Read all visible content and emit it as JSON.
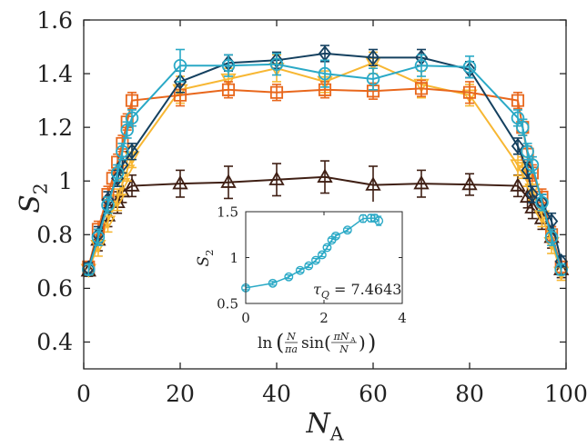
{
  "chart_data": [
    {
      "type": "line",
      "xlabel": "N_A",
      "ylabel": "S_2",
      "xlim": [
        0,
        100
      ],
      "ylim": [
        0.3,
        1.6
      ],
      "xticks": [
        "0",
        "20",
        "40",
        "60",
        "80",
        "100"
      ],
      "yticks": [
        "0.4",
        "0.6",
        "0.8",
        "1",
        "1.2",
        "1.4",
        "1.6"
      ],
      "grid": false,
      "series": [
        {
          "color": "#3f1f14",
          "marker": "triangle-up",
          "x": [
            1,
            3,
            5,
            7,
            8,
            10,
            20,
            30,
            40,
            50,
            60,
            70,
            80,
            90,
            92,
            93,
            95,
            97,
            99
          ],
          "y": [
            0.665,
            0.78,
            0.87,
            0.92,
            0.96,
            0.982,
            0.99,
            0.995,
            1.005,
            1.015,
            0.985,
            0.99,
            0.987,
            0.982,
            0.94,
            0.9,
            0.86,
            0.79,
            0.67
          ],
          "err": [
            0.02,
            0.04,
            0.04,
            0.04,
            0.04,
            0.04,
            0.05,
            0.06,
            0.06,
            0.06,
            0.07,
            0.05,
            0.04,
            0.04,
            0.04,
            0.04,
            0.04,
            0.04,
            0.03
          ]
        },
        {
          "color": "#f7b733",
          "marker": "triangle-down",
          "x": [
            1,
            3,
            5,
            7,
            8,
            9,
            10,
            20,
            30,
            40,
            50,
            60,
            70,
            80,
            90,
            91,
            92,
            93,
            95,
            97,
            99
          ],
          "y": [
            0.67,
            0.76,
            0.85,
            0.93,
            0.99,
            1.04,
            1.09,
            1.34,
            1.38,
            1.42,
            1.37,
            1.44,
            1.36,
            1.32,
            1.06,
            1.05,
            1.02,
            0.97,
            0.87,
            0.77,
            0.66
          ],
          "err": [
            0.02,
            0.04,
            0.04,
            0.04,
            0.04,
            0.04,
            0.04,
            0.05,
            0.04,
            0.05,
            0.04,
            0.04,
            0.05,
            0.04,
            0.04,
            0.04,
            0.04,
            0.04,
            0.04,
            0.04,
            0.03
          ]
        },
        {
          "color": "#e8671c",
          "marker": "square",
          "x": [
            1,
            3,
            5,
            6,
            7,
            8,
            9,
            10,
            20,
            30,
            40,
            50,
            60,
            70,
            80,
            90,
            91,
            92,
            93,
            95,
            97,
            99
          ],
          "y": [
            0.68,
            0.82,
            0.95,
            1.01,
            1.07,
            1.14,
            1.22,
            1.3,
            1.32,
            1.34,
            1.33,
            1.34,
            1.335,
            1.345,
            1.33,
            1.3,
            1.2,
            1.1,
            1.03,
            0.94,
            0.8,
            0.68
          ],
          "err": [
            0.02,
            0.03,
            0.03,
            0.03,
            0.03,
            0.03,
            0.03,
            0.03,
            0.04,
            0.03,
            0.03,
            0.03,
            0.03,
            0.03,
            0.04,
            0.03,
            0.03,
            0.03,
            0.03,
            0.03,
            0.03,
            0.02
          ]
        },
        {
          "color": "#14405f",
          "marker": "diamond",
          "x": [
            1,
            3,
            5,
            7,
            8,
            10,
            20,
            30,
            40,
            50,
            60,
            70,
            80,
            90,
            92,
            93,
            95,
            97,
            99
          ],
          "y": [
            0.675,
            0.8,
            0.93,
            1.01,
            1.06,
            1.11,
            1.37,
            1.44,
            1.45,
            1.475,
            1.46,
            1.46,
            1.415,
            1.13,
            1.04,
            0.95,
            0.92,
            0.85,
            0.7
          ],
          "err": [
            0.02,
            0.03,
            0.03,
            0.03,
            0.03,
            0.03,
            0.04,
            0.03,
            0.03,
            0.03,
            0.03,
            0.03,
            0.03,
            0.03,
            0.03,
            0.03,
            0.03,
            0.03,
            0.02
          ]
        },
        {
          "color": "#2aa9c6",
          "marker": "circle",
          "x": [
            1,
            3,
            5,
            7,
            8,
            9,
            10,
            20,
            30,
            40,
            50,
            60,
            70,
            80,
            90,
            91,
            92,
            93,
            95,
            97,
            99
          ],
          "y": [
            0.67,
            0.79,
            0.91,
            1.03,
            1.11,
            1.19,
            1.235,
            1.43,
            1.43,
            1.435,
            1.4,
            1.38,
            1.43,
            1.425,
            1.235,
            1.2,
            1.11,
            1.06,
            0.92,
            0.79,
            0.67
          ],
          "err": [
            0.02,
            0.03,
            0.03,
            0.03,
            0.03,
            0.03,
            0.03,
            0.06,
            0.04,
            0.04,
            0.05,
            0.04,
            0.04,
            0.04,
            0.03,
            0.03,
            0.03,
            0.03,
            0.03,
            0.03,
            0.02
          ]
        }
      ]
    },
    {
      "type": "line",
      "xlabel": "ln(N/(πa) sin(πN_A/N))",
      "ylabel": "S_2",
      "xlim": [
        0,
        4
      ],
      "ylim": [
        0.5,
        1.5
      ],
      "xticks": [
        "0",
        "2",
        "4"
      ],
      "yticks": [
        "0.5",
        "1",
        "1.5"
      ],
      "annotation": "τ_Q = 7.4643",
      "series": [
        {
          "color": "#2aa9c6",
          "marker": "circle",
          "x": [
            0,
            0.69,
            1.1,
            1.39,
            1.61,
            1.79,
            1.95,
            2.08,
            2.2,
            2.3,
            2.6,
            3.0,
            3.2,
            3.3,
            3.4
          ],
          "y": [
            0.67,
            0.72,
            0.79,
            0.86,
            0.91,
            0.97,
            1.03,
            1.11,
            1.19,
            1.235,
            1.3,
            1.425,
            1.43,
            1.43,
            1.4
          ],
          "err": [
            0.02,
            0.02,
            0.02,
            0.02,
            0.02,
            0.02,
            0.02,
            0.02,
            0.02,
            0.02,
            0.02,
            0.04,
            0.04,
            0.04,
            0.05
          ]
        }
      ]
    }
  ]
}
